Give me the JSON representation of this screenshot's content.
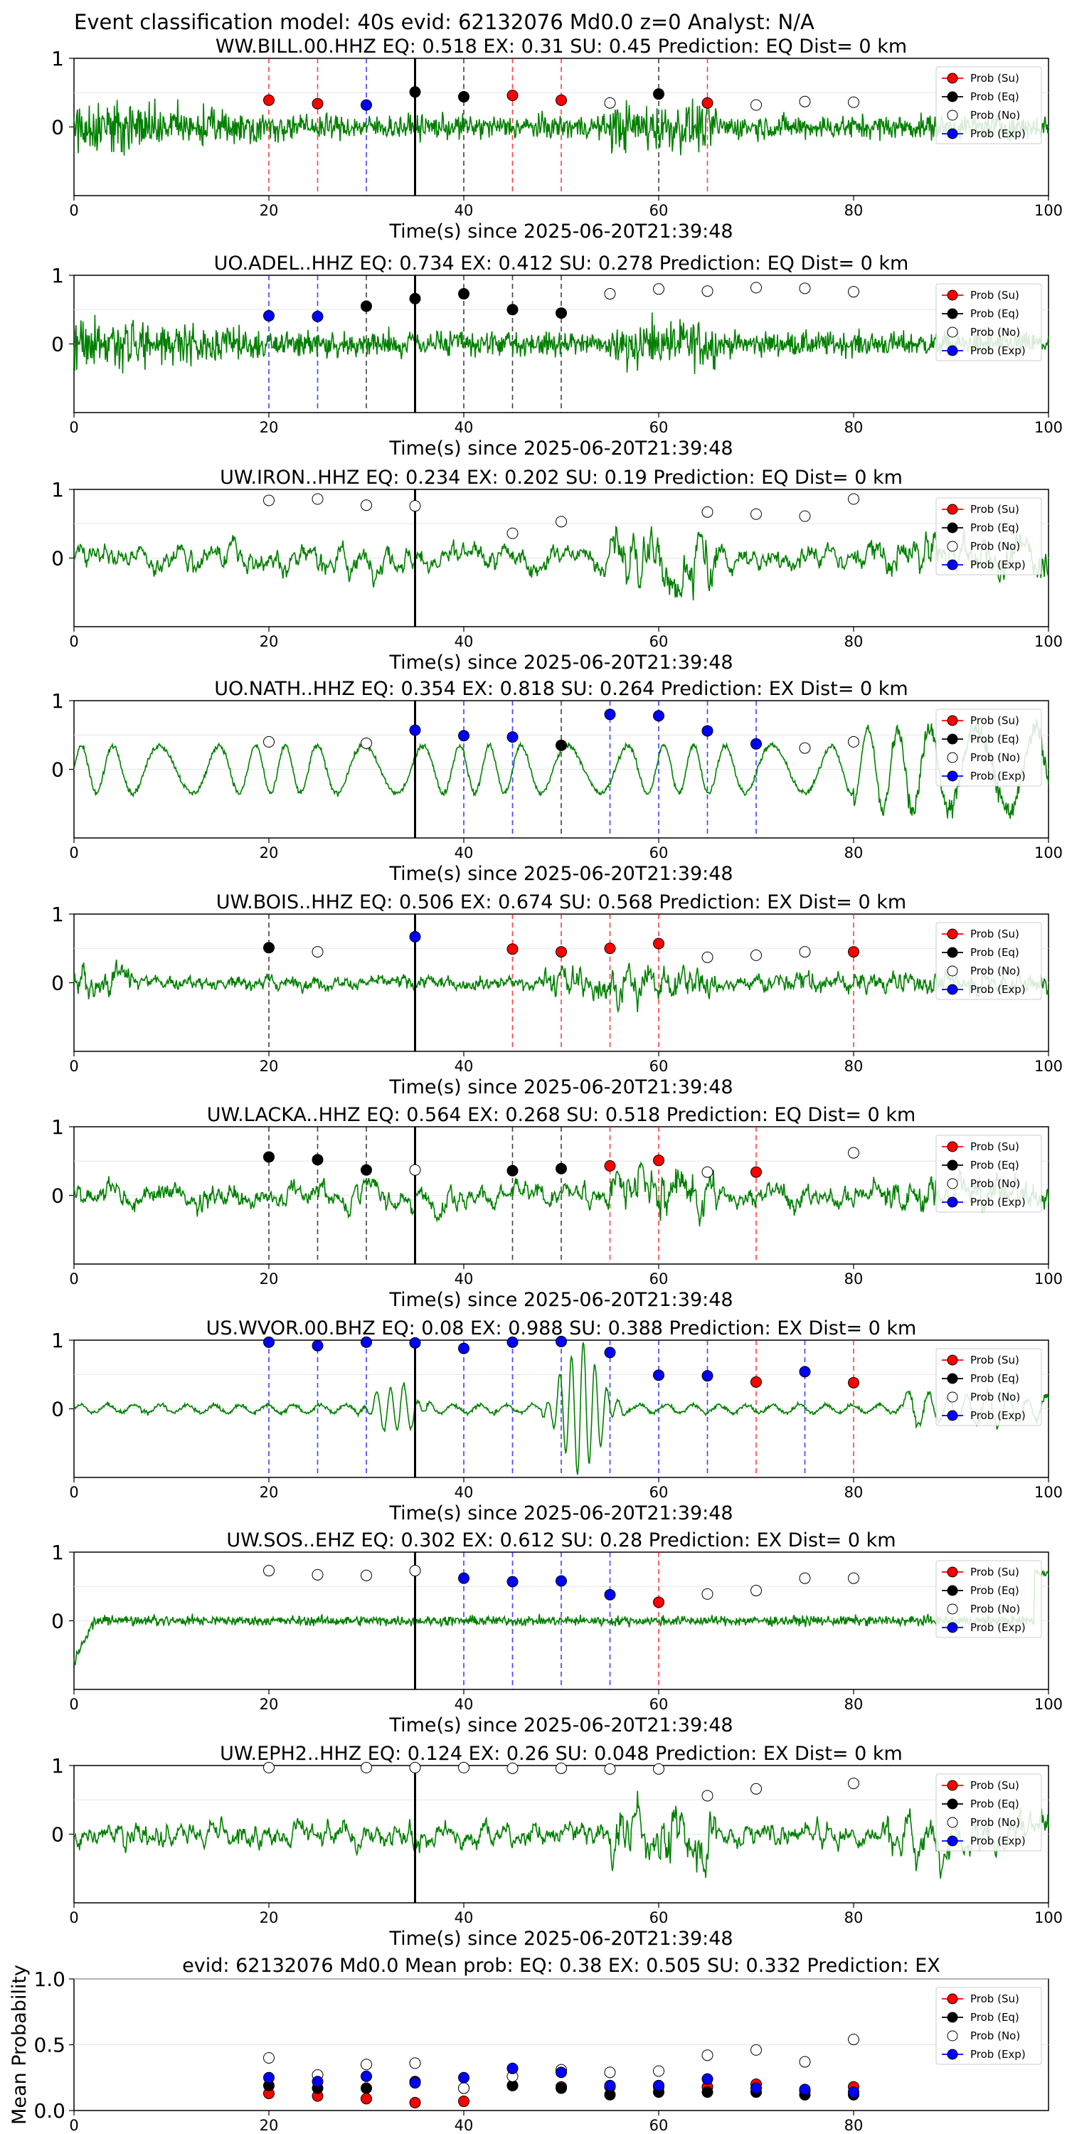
{
  "figure_title": "Event classification model: 40s evid: 62132076 Md0.0 z=0 Analyst: N/A",
  "legend_labels": [
    "Prob (Su)",
    "Prob (Eq)",
    "Prob (No)",
    "Prob (Exp)"
  ],
  "colors": {
    "su": "#ff0000",
    "eq": "#000000",
    "no": "#ffffff",
    "exp": "#0000ff",
    "waveform": "#008000",
    "grid": "#e6e6e6"
  },
  "chart_data": [
    {
      "type": "line",
      "station": "WW.BILL.00.HHZ",
      "title": "WW.BILL.00.HHZ   EQ: 0.518  EX: 0.31  SU: 0.45   Prediction: EQ    Dist= 0 km",
      "xlabel": "Time(s) since 2025-06-20T21:39:48",
      "xlim": [
        0,
        100
      ],
      "ylim": [
        -1,
        1
      ],
      "xticks": [
        0,
        20,
        40,
        60,
        80,
        100
      ],
      "yticks": [
        0,
        1
      ],
      "pick_time": 35,
      "waveform_style": "noisy",
      "points": [
        {
          "x": 20,
          "y": 0.39,
          "cls": "su"
        },
        {
          "x": 25,
          "y": 0.34,
          "cls": "su"
        },
        {
          "x": 30,
          "y": 0.32,
          "cls": "exp"
        },
        {
          "x": 35,
          "y": 0.51,
          "cls": "eq"
        },
        {
          "x": 40,
          "y": 0.44,
          "cls": "eq"
        },
        {
          "x": 45,
          "y": 0.46,
          "cls": "su"
        },
        {
          "x": 50,
          "y": 0.39,
          "cls": "su"
        },
        {
          "x": 55,
          "y": 0.35,
          "cls": "no"
        },
        {
          "x": 60,
          "y": 0.48,
          "cls": "eq"
        },
        {
          "x": 65,
          "y": 0.35,
          "cls": "su"
        },
        {
          "x": 70,
          "y": 0.32,
          "cls": "no"
        },
        {
          "x": 75,
          "y": 0.37,
          "cls": "no"
        },
        {
          "x": 80,
          "y": 0.36,
          "cls": "no"
        }
      ]
    },
    {
      "type": "line",
      "station": "UO.ADEL..HHZ",
      "title": "UO.ADEL..HHZ   EQ: 0.734  EX: 0.412  SU: 0.278   Prediction: EQ    Dist= 0 km",
      "xlabel": "Time(s) since 2025-06-20T21:39:48",
      "xlim": [
        0,
        100
      ],
      "ylim": [
        -1,
        1
      ],
      "xticks": [
        0,
        20,
        40,
        60,
        80,
        100
      ],
      "yticks": [
        0,
        1
      ],
      "pick_time": 35,
      "waveform_style": "noisy",
      "points": [
        {
          "x": 20,
          "y": 0.41,
          "cls": "exp"
        },
        {
          "x": 25,
          "y": 0.4,
          "cls": "exp"
        },
        {
          "x": 30,
          "y": 0.55,
          "cls": "eq"
        },
        {
          "x": 35,
          "y": 0.66,
          "cls": "eq"
        },
        {
          "x": 40,
          "y": 0.73,
          "cls": "eq"
        },
        {
          "x": 45,
          "y": 0.5,
          "cls": "eq"
        },
        {
          "x": 50,
          "y": 0.45,
          "cls": "eq"
        },
        {
          "x": 55,
          "y": 0.73,
          "cls": "no"
        },
        {
          "x": 60,
          "y": 0.8,
          "cls": "no"
        },
        {
          "x": 65,
          "y": 0.77,
          "cls": "no"
        },
        {
          "x": 70,
          "y": 0.82,
          "cls": "no"
        },
        {
          "x": 75,
          "y": 0.81,
          "cls": "no"
        },
        {
          "x": 80,
          "y": 0.76,
          "cls": "no"
        }
      ]
    },
    {
      "type": "line",
      "station": "UW.IRON..HHZ",
      "title": "UW.IRON..HHZ   EQ: 0.234  EX: 0.202  SU: 0.19   Prediction: EQ    Dist= 0 km",
      "xlabel": "Time(s) since 2025-06-20T21:39:48",
      "xlim": [
        0,
        100
      ],
      "ylim": [
        -1,
        1
      ],
      "xticks": [
        0,
        20,
        40,
        60,
        80,
        100
      ],
      "yticks": [
        0,
        1
      ],
      "pick_time": 35,
      "waveform_style": "choppy",
      "points": [
        {
          "x": 20,
          "y": 0.84,
          "cls": "no"
        },
        {
          "x": 25,
          "y": 0.86,
          "cls": "no"
        },
        {
          "x": 30,
          "y": 0.77,
          "cls": "no"
        },
        {
          "x": 35,
          "y": 0.76,
          "cls": "no"
        },
        {
          "x": 45,
          "y": 0.36,
          "cls": "no"
        },
        {
          "x": 50,
          "y": 0.53,
          "cls": "no"
        },
        {
          "x": 65,
          "y": 0.67,
          "cls": "no"
        },
        {
          "x": 70,
          "y": 0.64,
          "cls": "no"
        },
        {
          "x": 75,
          "y": 0.61,
          "cls": "no"
        },
        {
          "x": 80,
          "y": 0.86,
          "cls": "no"
        }
      ]
    },
    {
      "type": "line",
      "station": "UO.NATH..HHZ",
      "title": "UO.NATH..HHZ   EQ: 0.354  EX: 0.818  SU: 0.264   Prediction: EX    Dist= 0 km",
      "xlabel": "Time(s) since 2025-06-20T21:39:48",
      "xlim": [
        0,
        100
      ],
      "ylim": [
        -1,
        1
      ],
      "xticks": [
        0,
        20,
        40,
        60,
        80,
        100
      ],
      "yticks": [
        0,
        1
      ],
      "pick_time": 35,
      "waveform_style": "wavy",
      "points": [
        {
          "x": 20,
          "y": 0.4,
          "cls": "no"
        },
        {
          "x": 30,
          "y": 0.38,
          "cls": "no"
        },
        {
          "x": 35,
          "y": 0.57,
          "cls": "exp"
        },
        {
          "x": 40,
          "y": 0.49,
          "cls": "exp"
        },
        {
          "x": 45,
          "y": 0.47,
          "cls": "exp"
        },
        {
          "x": 50,
          "y": 0.35,
          "cls": "eq"
        },
        {
          "x": 55,
          "y": 0.8,
          "cls": "exp"
        },
        {
          "x": 60,
          "y": 0.78,
          "cls": "exp"
        },
        {
          "x": 65,
          "y": 0.56,
          "cls": "exp"
        },
        {
          "x": 70,
          "y": 0.37,
          "cls": "exp"
        },
        {
          "x": 75,
          "y": 0.31,
          "cls": "no"
        },
        {
          "x": 80,
          "y": 0.4,
          "cls": "no"
        }
      ]
    },
    {
      "type": "line",
      "station": "UW.BOIS..HHZ",
      "title": "UW.BOIS..HHZ   EQ: 0.506  EX: 0.674  SU: 0.568   Prediction: EX    Dist= 0 km",
      "xlabel": "Time(s) since 2025-06-20T21:39:48",
      "xlim": [
        0,
        100
      ],
      "ylim": [
        -1,
        1
      ],
      "xticks": [
        0,
        20,
        40,
        60,
        80,
        100
      ],
      "yticks": [
        0,
        1
      ],
      "pick_time": 35,
      "waveform_style": "mixed",
      "points": [
        {
          "x": 20,
          "y": 0.51,
          "cls": "eq"
        },
        {
          "x": 25,
          "y": 0.45,
          "cls": "no"
        },
        {
          "x": 35,
          "y": 0.67,
          "cls": "exp"
        },
        {
          "x": 45,
          "y": 0.49,
          "cls": "su"
        },
        {
          "x": 50,
          "y": 0.45,
          "cls": "su"
        },
        {
          "x": 55,
          "y": 0.5,
          "cls": "su"
        },
        {
          "x": 60,
          "y": 0.57,
          "cls": "su"
        },
        {
          "x": 65,
          "y": 0.37,
          "cls": "no"
        },
        {
          "x": 70,
          "y": 0.4,
          "cls": "no"
        },
        {
          "x": 75,
          "y": 0.45,
          "cls": "no"
        },
        {
          "x": 80,
          "y": 0.45,
          "cls": "su"
        }
      ]
    },
    {
      "type": "line",
      "station": "UW.LACKA..HHZ",
      "title": "UW.LACKA..HHZ   EQ: 0.564  EX: 0.268  SU: 0.518   Prediction: EQ    Dist= 0 km",
      "xlabel": "Time(s) since 2025-06-20T21:39:48",
      "xlim": [
        0,
        100
      ],
      "ylim": [
        -1,
        1
      ],
      "xticks": [
        0,
        20,
        40,
        60,
        80,
        100
      ],
      "yticks": [
        0,
        1
      ],
      "pick_time": 35,
      "waveform_style": "choppy",
      "points": [
        {
          "x": 20,
          "y": 0.56,
          "cls": "eq"
        },
        {
          "x": 25,
          "y": 0.52,
          "cls": "eq"
        },
        {
          "x": 30,
          "y": 0.37,
          "cls": "eq"
        },
        {
          "x": 35,
          "y": 0.37,
          "cls": "no"
        },
        {
          "x": 45,
          "y": 0.36,
          "cls": "eq"
        },
        {
          "x": 50,
          "y": 0.39,
          "cls": "eq"
        },
        {
          "x": 55,
          "y": 0.43,
          "cls": "su"
        },
        {
          "x": 60,
          "y": 0.51,
          "cls": "su"
        },
        {
          "x": 65,
          "y": 0.34,
          "cls": "no"
        },
        {
          "x": 70,
          "y": 0.34,
          "cls": "su"
        },
        {
          "x": 80,
          "y": 0.62,
          "cls": "no"
        }
      ]
    },
    {
      "type": "line",
      "station": "US.WVOR.00.BHZ",
      "title": "US.WVOR.00.BHZ   EQ: 0.08  EX: 0.988  SU: 0.388   Prediction: EX    Dist= 0 km",
      "xlabel": "Time(s) since 2025-06-20T21:39:48",
      "xlim": [
        0,
        100
      ],
      "ylim": [
        -1,
        1
      ],
      "xticks": [
        0,
        20,
        40,
        60,
        80,
        100
      ],
      "yticks": [
        0,
        1
      ],
      "pick_time": 35,
      "waveform_style": "quiet",
      "points": [
        {
          "x": 20,
          "y": 0.97,
          "cls": "exp"
        },
        {
          "x": 25,
          "y": 0.92,
          "cls": "exp"
        },
        {
          "x": 30,
          "y": 0.97,
          "cls": "exp"
        },
        {
          "x": 35,
          "y": 0.96,
          "cls": "exp"
        },
        {
          "x": 40,
          "y": 0.88,
          "cls": "exp"
        },
        {
          "x": 45,
          "y": 0.97,
          "cls": "exp"
        },
        {
          "x": 50,
          "y": 0.98,
          "cls": "exp"
        },
        {
          "x": 55,
          "y": 0.82,
          "cls": "exp"
        },
        {
          "x": 60,
          "y": 0.49,
          "cls": "exp"
        },
        {
          "x": 65,
          "y": 0.48,
          "cls": "exp"
        },
        {
          "x": 70,
          "y": 0.39,
          "cls": "su"
        },
        {
          "x": 75,
          "y": 0.54,
          "cls": "exp"
        },
        {
          "x": 80,
          "y": 0.38,
          "cls": "su"
        }
      ]
    },
    {
      "type": "line",
      "station": "UW.SOS..EHZ",
      "title": "UW.SOS..EHZ   EQ: 0.302  EX: 0.612  SU: 0.28   Prediction: EX    Dist= 0 km",
      "xlabel": "Time(s) since 2025-06-20T21:39:48",
      "xlim": [
        0,
        100
      ],
      "ylim": [
        -1,
        1
      ],
      "xticks": [
        0,
        20,
        40,
        60,
        80,
        100
      ],
      "yticks": [
        0,
        1
      ],
      "pick_time": 35,
      "waveform_style": "flat",
      "points": [
        {
          "x": 20,
          "y": 0.73,
          "cls": "no"
        },
        {
          "x": 25,
          "y": 0.67,
          "cls": "no"
        },
        {
          "x": 30,
          "y": 0.66,
          "cls": "no"
        },
        {
          "x": 35,
          "y": 0.73,
          "cls": "no"
        },
        {
          "x": 40,
          "y": 0.62,
          "cls": "exp"
        },
        {
          "x": 45,
          "y": 0.57,
          "cls": "exp"
        },
        {
          "x": 50,
          "y": 0.58,
          "cls": "exp"
        },
        {
          "x": 55,
          "y": 0.38,
          "cls": "exp"
        },
        {
          "x": 60,
          "y": 0.27,
          "cls": "su"
        },
        {
          "x": 65,
          "y": 0.39,
          "cls": "no"
        },
        {
          "x": 70,
          "y": 0.44,
          "cls": "no"
        },
        {
          "x": 75,
          "y": 0.62,
          "cls": "no"
        },
        {
          "x": 80,
          "y": 0.62,
          "cls": "no"
        }
      ]
    },
    {
      "type": "line",
      "station": "UW.EPH2..HHZ",
      "title": "UW.EPH2..HHZ   EQ: 0.124  EX: 0.26  SU: 0.048   Prediction: EX    Dist= 0 km",
      "xlabel": "Time(s) since 2025-06-20T21:39:48",
      "xlim": [
        0,
        100
      ],
      "ylim": [
        -1,
        1
      ],
      "xticks": [
        0,
        20,
        40,
        60,
        80,
        100
      ],
      "yticks": [
        0,
        1
      ],
      "pick_time": 35,
      "waveform_style": "choppy",
      "points": [
        {
          "x": 20,
          "y": 0.97,
          "cls": "no"
        },
        {
          "x": 30,
          "y": 0.97,
          "cls": "no"
        },
        {
          "x": 35,
          "y": 0.97,
          "cls": "no"
        },
        {
          "x": 40,
          "y": 0.97,
          "cls": "no"
        },
        {
          "x": 45,
          "y": 0.96,
          "cls": "no"
        },
        {
          "x": 50,
          "y": 0.96,
          "cls": "no"
        },
        {
          "x": 55,
          "y": 0.95,
          "cls": "no"
        },
        {
          "x": 60,
          "y": 0.95,
          "cls": "no"
        },
        {
          "x": 65,
          "y": 0.56,
          "cls": "no"
        },
        {
          "x": 70,
          "y": 0.66,
          "cls": "no"
        },
        {
          "x": 80,
          "y": 0.74,
          "cls": "no"
        }
      ]
    },
    {
      "type": "scatter",
      "title": "evid: 62132076  Md0.0   Mean prob:   EQ: 0.38  EX: 0.505  SU: 0.332   Prediction: EX",
      "ylabel": "Mean Probability",
      "xlim": [
        0,
        100
      ],
      "ylim": [
        0,
        1
      ],
      "xticks": [
        0,
        20,
        40,
        60,
        80
      ],
      "yticks": [
        0.0,
        0.5,
        1.0
      ],
      "series": [
        {
          "name": "Prob (Su)",
          "cls": "su",
          "x": [
            20,
            25,
            30,
            35,
            40,
            45,
            50,
            55,
            60,
            65,
            70,
            75,
            80
          ],
          "y": [
            0.13,
            0.11,
            0.09,
            0.06,
            0.07,
            0.19,
            0.18,
            0.18,
            0.18,
            0.18,
            0.2,
            0.15,
            0.18
          ]
        },
        {
          "name": "Prob (Eq)",
          "cls": "eq",
          "x": [
            20,
            25,
            30,
            35,
            40,
            45,
            50,
            55,
            60,
            65,
            70,
            75,
            80
          ],
          "y": [
            0.19,
            0.17,
            0.17,
            0.22,
            0.17,
            0.19,
            0.17,
            0.12,
            0.14,
            0.14,
            0.14,
            0.12,
            0.12
          ]
        },
        {
          "name": "Prob (No)",
          "cls": "no",
          "x": [
            20,
            25,
            30,
            35,
            40,
            45,
            50,
            55,
            60,
            65,
            70,
            75,
            80
          ],
          "y": [
            0.4,
            0.27,
            0.35,
            0.36,
            0.17,
            0.26,
            0.31,
            0.29,
            0.3,
            0.42,
            0.46,
            0.37,
            0.54
          ]
        },
        {
          "name": "Prob (Exp)",
          "cls": "exp",
          "x": [
            20,
            25,
            30,
            35,
            40,
            45,
            50,
            55,
            60,
            65,
            70,
            75,
            80
          ],
          "y": [
            0.25,
            0.22,
            0.26,
            0.21,
            0.25,
            0.32,
            0.29,
            0.19,
            0.19,
            0.24,
            0.17,
            0.16,
            0.14
          ]
        }
      ]
    }
  ]
}
